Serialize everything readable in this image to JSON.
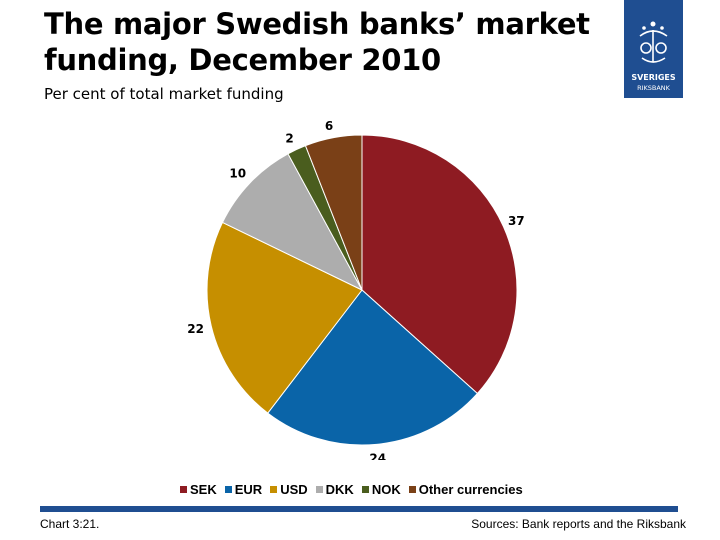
{
  "title": "The major Swedish banks’ market funding, December 2010",
  "subtitle": "Per cent of total market funding",
  "logo": {
    "icon": "riksbank-crest-icon",
    "text_line1": "SVERIGES",
    "text_line2": "RIKSBANK",
    "color": "#1f4e91"
  },
  "chart_data": {
    "type": "pie",
    "title": "The major Swedish banks’ market funding, December 2010",
    "subtitle": "Per cent of total market funding",
    "legend_position": "bottom",
    "slices": [
      {
        "name": "SEK",
        "value": 37,
        "color": "#8e1b22"
      },
      {
        "name": "EUR",
        "value": 24,
        "color": "#0a64a8"
      },
      {
        "name": "USD",
        "value": 22,
        "color": "#c68f00"
      },
      {
        "name": "DKK",
        "value": 10,
        "color": "#adadad"
      },
      {
        "name": "NOK",
        "value": 2,
        "color": "#4a5d1e"
      },
      {
        "name": "Other currencies",
        "value": 6,
        "color": "#7a4017"
      }
    ]
  },
  "footer": {
    "chart_number": "Chart 3:21.",
    "sources": "Sources: Bank reports and the Riksbank"
  }
}
